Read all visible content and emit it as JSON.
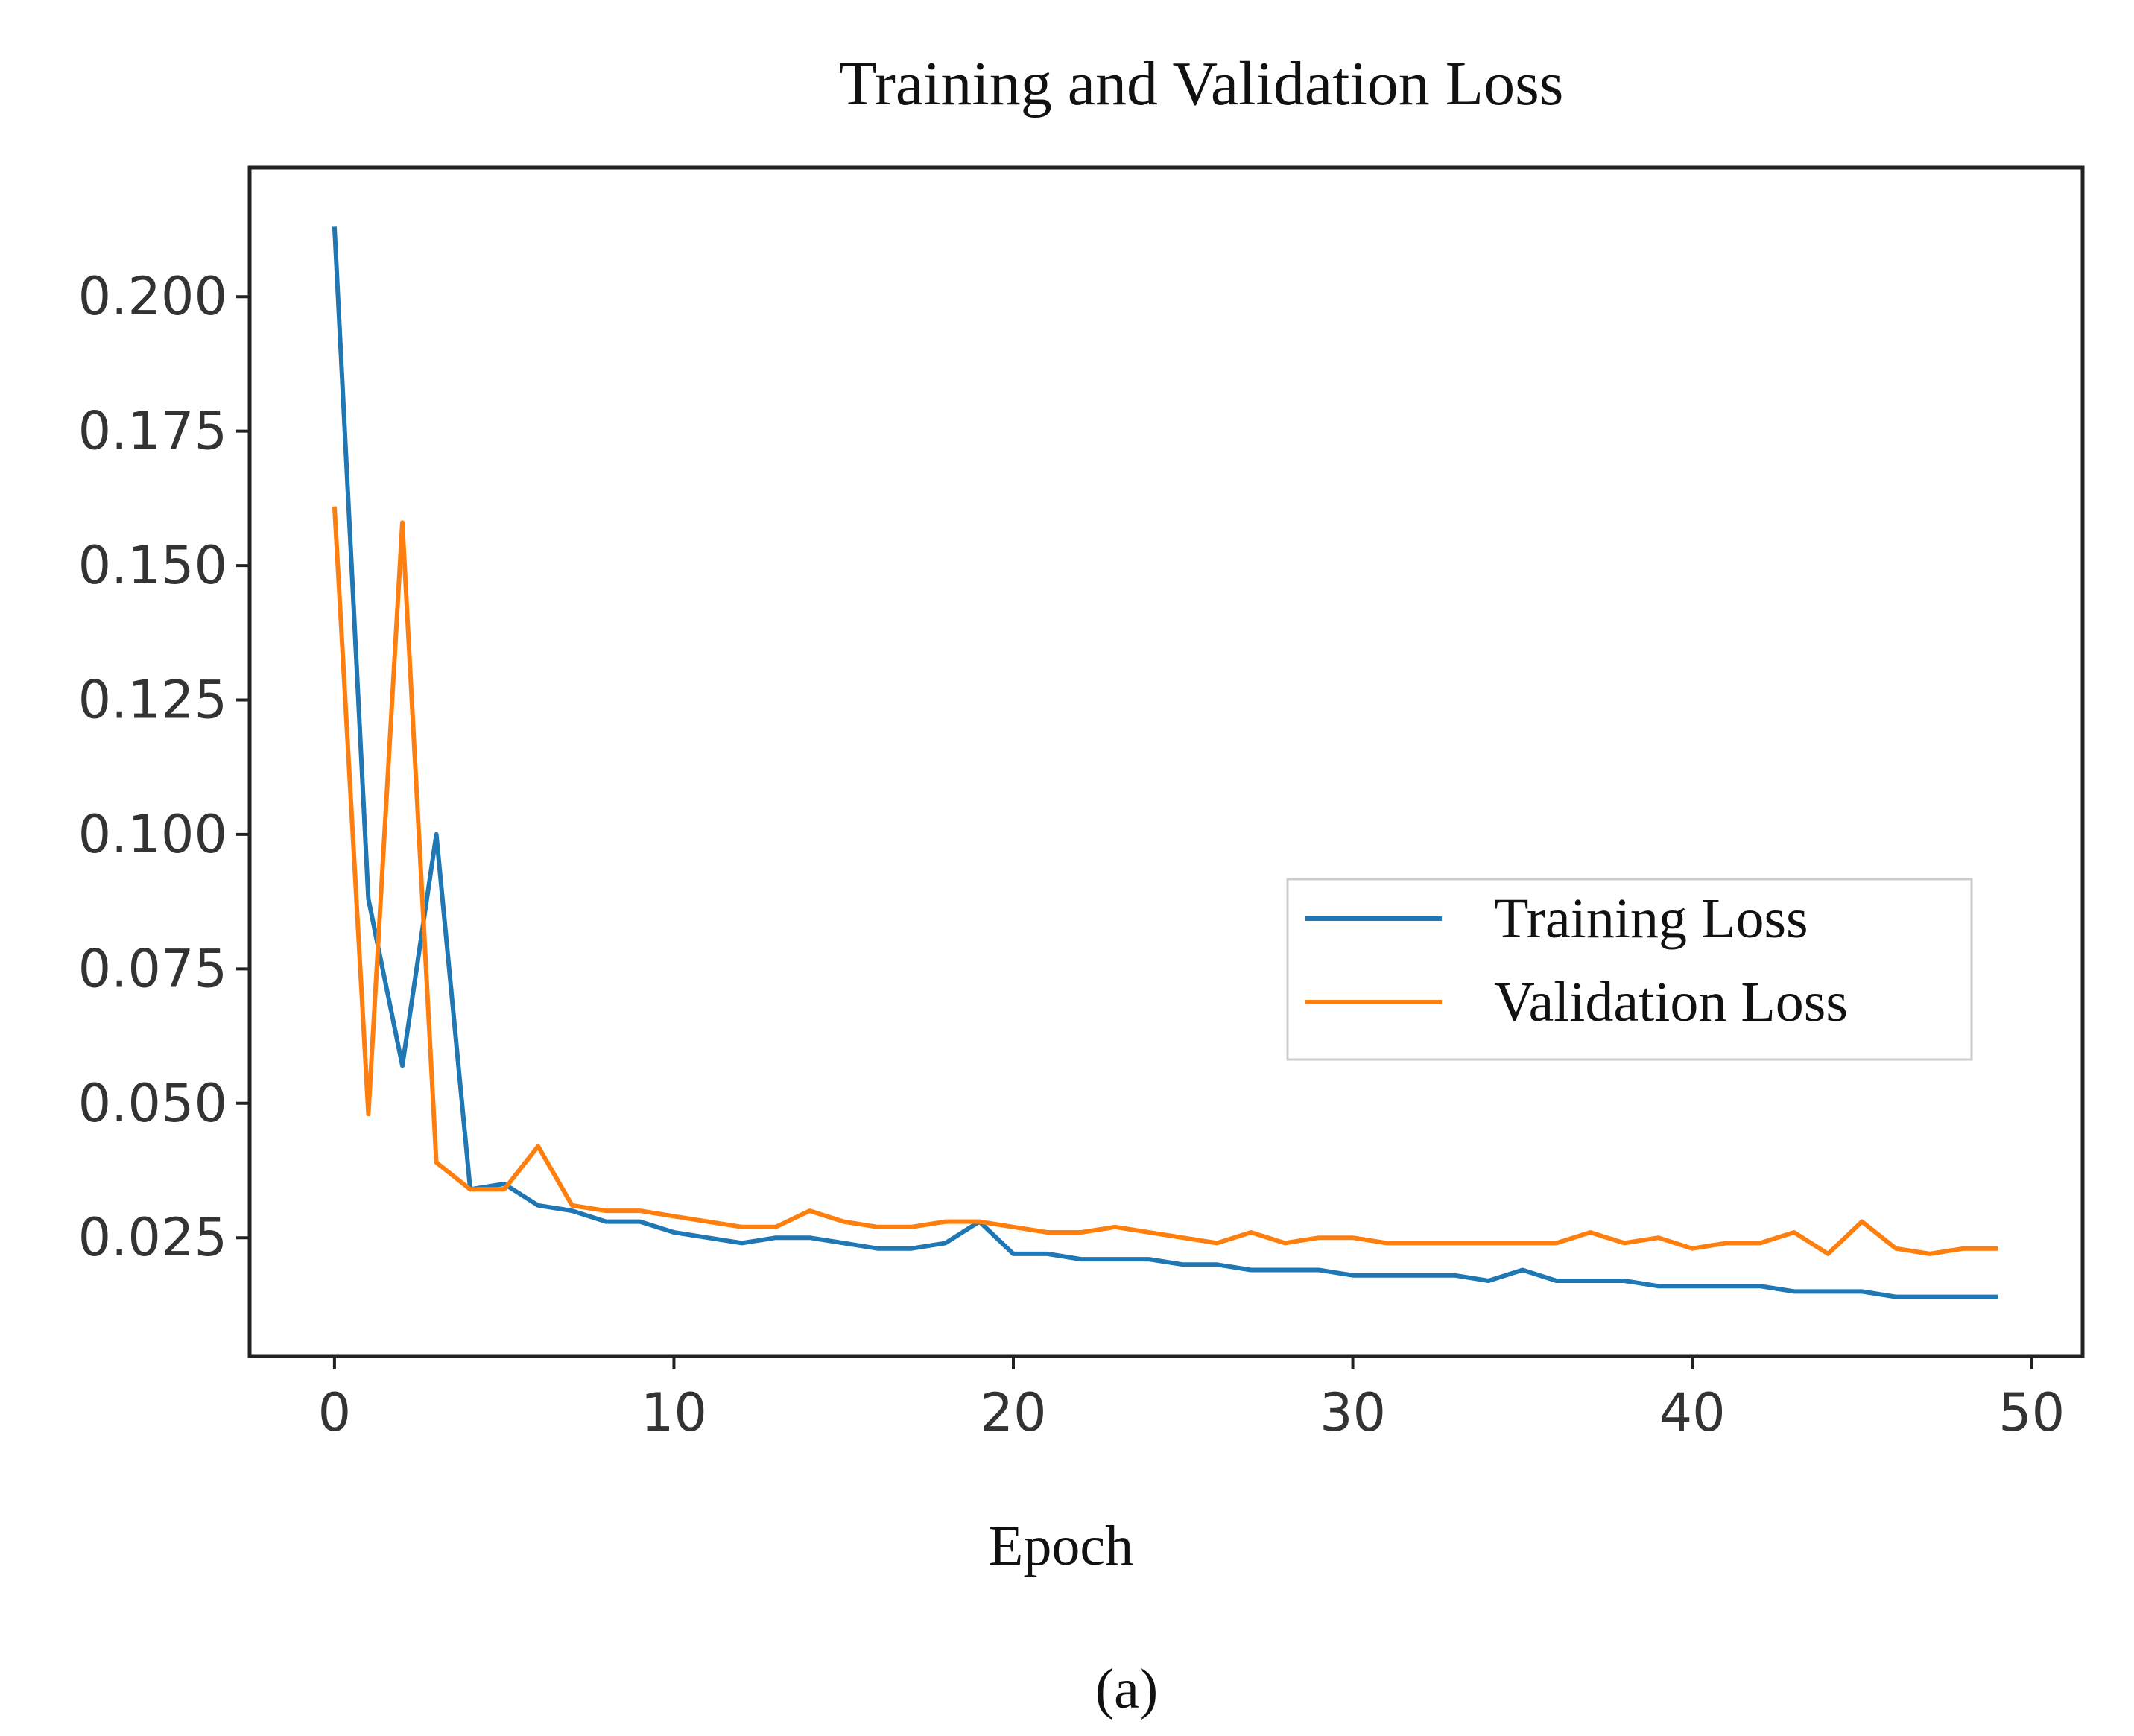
{
  "chart_data": {
    "type": "line",
    "title": "Training and Validation Loss",
    "xlabel": "Epoch",
    "ylabel": "",
    "caption": "(a)",
    "xlim": [
      -2.5,
      51.5
    ],
    "ylim": [
      0.003,
      0.224
    ],
    "xticks": [
      0,
      10,
      20,
      30,
      40,
      50
    ],
    "xtick_labels": [
      "0",
      "10",
      "20",
      "30",
      "40",
      "50"
    ],
    "yticks": [
      0.025,
      0.05,
      0.075,
      0.1,
      0.125,
      0.15,
      0.175,
      0.2
    ],
    "ytick_labels": [
      "0.025",
      "0.050",
      "0.075",
      "0.100",
      "0.125",
      "0.150",
      "0.175",
      "0.200"
    ],
    "grid": false,
    "legend_position": "center-right",
    "x": [
      0,
      1,
      2,
      3,
      4,
      5,
      6,
      7,
      8,
      9,
      10,
      11,
      12,
      13,
      14,
      15,
      16,
      17,
      18,
      19,
      20,
      21,
      22,
      23,
      24,
      25,
      26,
      27,
      28,
      29,
      30,
      31,
      32,
      33,
      34,
      35,
      36,
      37,
      38,
      39,
      40,
      41,
      42,
      43,
      44,
      45,
      46,
      47,
      48,
      49
    ],
    "series": [
      {
        "name": "Training Loss",
        "color": "#1f77b4",
        "values": [
          0.213,
          0.088,
          0.057,
          0.1,
          0.034,
          0.035,
          0.031,
          0.03,
          0.028,
          0.028,
          0.026,
          0.025,
          0.024,
          0.025,
          0.025,
          0.024,
          0.023,
          0.023,
          0.024,
          0.028,
          0.022,
          0.022,
          0.021,
          0.021,
          0.021,
          0.02,
          0.02,
          0.019,
          0.019,
          0.019,
          0.018,
          0.018,
          0.018,
          0.018,
          0.017,
          0.019,
          0.017,
          0.017,
          0.017,
          0.016,
          0.016,
          0.016,
          0.016,
          0.015,
          0.015,
          0.015,
          0.014,
          0.014,
          0.014,
          0.014
        ]
      },
      {
        "name": "Validation Loss",
        "color": "#ff7f0e",
        "values": [
          0.161,
          0.048,
          0.158,
          0.039,
          0.034,
          0.034,
          0.042,
          0.031,
          0.03,
          0.03,
          0.029,
          0.028,
          0.027,
          0.027,
          0.03,
          0.028,
          0.027,
          0.027,
          0.028,
          0.028,
          0.027,
          0.026,
          0.026,
          0.027,
          0.026,
          0.025,
          0.024,
          0.026,
          0.024,
          0.025,
          0.025,
          0.024,
          0.024,
          0.024,
          0.024,
          0.024,
          0.024,
          0.026,
          0.024,
          0.025,
          0.023,
          0.024,
          0.024,
          0.026,
          0.022,
          0.028,
          0.023,
          0.022,
          0.023,
          0.023
        ]
      }
    ]
  }
}
